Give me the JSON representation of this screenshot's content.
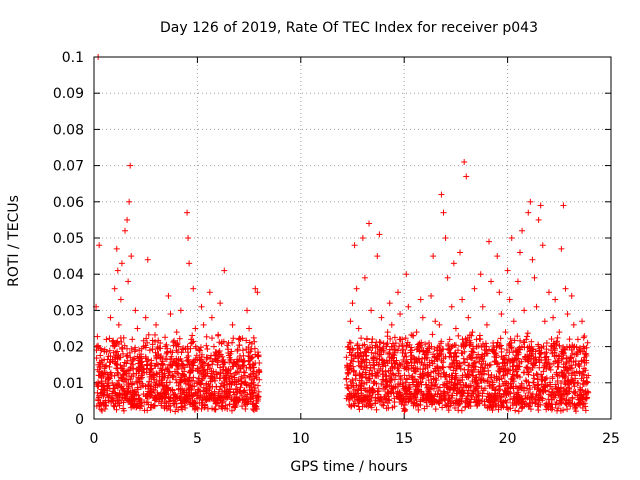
{
  "chart_data": {
    "type": "scatter",
    "title": "Day 126 of 2019, Rate Of TEC Index for receiver p043",
    "xlabel": "GPS time / hours",
    "ylabel": "ROTI / TECUs",
    "xlim": [
      0,
      25
    ],
    "ylim": [
      0,
      0.1
    ],
    "xticks": [
      0,
      5,
      10,
      15,
      20,
      25
    ],
    "xtick_labels": [
      "0",
      "5",
      "10",
      "15",
      "20",
      "25"
    ],
    "yticks": [
      0,
      0.01,
      0.02,
      0.03,
      0.04,
      0.05,
      0.06,
      0.07,
      0.08,
      0.09,
      0.1
    ],
    "ytick_labels": [
      "0",
      "0.01",
      "0.02",
      "0.03",
      "0.04",
      "0.05",
      "0.06",
      "0.07",
      "0.08",
      "0.09",
      "0.1"
    ],
    "grid": true,
    "marker": "+",
    "color": "#ff0000",
    "series": [
      {
        "name": "ROTI",
        "x": [
          0.1,
          0.2,
          0.25,
          0.3,
          0.35,
          0.4,
          0.5,
          0.6,
          0.7,
          0.8,
          0.9,
          1.0,
          1.1,
          1.15,
          1.2,
          1.3,
          1.35,
          1.4,
          1.5,
          1.6,
          1.65,
          1.7,
          1.75,
          1.8,
          1.85,
          1.9,
          2.0,
          2.1,
          2.2,
          2.3,
          2.4,
          2.5,
          2.6,
          2.7,
          2.8,
          2.9,
          3.0,
          3.1,
          3.2,
          3.3,
          3.4,
          3.5,
          3.6,
          3.7,
          3.8,
          3.9,
          4.0,
          4.1,
          4.2,
          4.3,
          4.4,
          4.5,
          4.55,
          4.6,
          4.7,
          4.8,
          4.9,
          5.0,
          5.1,
          5.2,
          5.3,
          5.4,
          5.5,
          5.6,
          5.7,
          5.8,
          5.9,
          6.0,
          6.1,
          6.2,
          6.3,
          6.4,
          6.5,
          6.6,
          6.7,
          6.8,
          6.9,
          7.0,
          7.1,
          7.2,
          7.3,
          7.4,
          7.5,
          7.6,
          7.7,
          7.8,
          7.9,
          8.0,
          12.2,
          12.3,
          12.4,
          12.5,
          12.6,
          12.7,
          12.8,
          12.9,
          13.0,
          13.1,
          13.2,
          13.3,
          13.4,
          13.5,
          13.6,
          13.7,
          13.8,
          13.9,
          14.0,
          14.1,
          14.2,
          14.3,
          14.4,
          14.5,
          14.6,
          14.7,
          14.8,
          14.9,
          15.0,
          15.1,
          15.2,
          15.3,
          15.4,
          15.5,
          15.6,
          15.7,
          15.8,
          15.9,
          16.0,
          16.1,
          16.2,
          16.3,
          16.4,
          16.5,
          16.6,
          16.7,
          16.8,
          16.9,
          17.0,
          17.1,
          17.2,
          17.3,
          17.4,
          17.5,
          17.6,
          17.7,
          17.8,
          17.9,
          18.0,
          18.1,
          18.2,
          18.3,
          18.4,
          18.5,
          18.6,
          18.7,
          18.8,
          18.9,
          19.0,
          19.1,
          19.2,
          19.3,
          19.4,
          19.5,
          19.6,
          19.7,
          19.8,
          19.9,
          20.0,
          20.1,
          20.2,
          20.3,
          20.4,
          20.5,
          20.6,
          20.7,
          20.8,
          20.9,
          21.0,
          21.1,
          21.2,
          21.3,
          21.4,
          21.5,
          21.6,
          21.7,
          21.8,
          21.9,
          22.0,
          22.1,
          22.2,
          22.3,
          22.4,
          22.5,
          22.6,
          22.7,
          22.8,
          22.9,
          23.0,
          23.1,
          23.2,
          23.3,
          23.4,
          23.5,
          23.6,
          23.7,
          23.8,
          23.9
        ],
        "y": [
          0.031,
          0.1,
          0.048,
          0.012,
          0.019,
          0.009,
          0.014,
          0.022,
          0.011,
          0.028,
          0.016,
          0.036,
          0.047,
          0.041,
          0.026,
          0.033,
          0.043,
          0.018,
          0.052,
          0.055,
          0.038,
          0.06,
          0.07,
          0.045,
          0.022,
          0.014,
          0.03,
          0.025,
          0.017,
          0.012,
          0.02,
          0.028,
          0.044,
          0.019,
          0.013,
          0.01,
          0.026,
          0.015,
          0.021,
          0.011,
          0.009,
          0.018,
          0.034,
          0.029,
          0.012,
          0.016,
          0.024,
          0.02,
          0.03,
          0.015,
          0.011,
          0.057,
          0.05,
          0.043,
          0.022,
          0.036,
          0.025,
          0.014,
          0.019,
          0.031,
          0.026,
          0.012,
          0.017,
          0.035,
          0.028,
          0.02,
          0.013,
          0.023,
          0.032,
          0.016,
          0.041,
          0.012,
          0.021,
          0.018,
          0.026,
          0.011,
          0.015,
          0.022,
          0.014,
          0.019,
          0.012,
          0.03,
          0.025,
          0.017,
          0.01,
          0.036,
          0.035,
          0.013,
          0.011,
          0.02,
          0.027,
          0.032,
          0.048,
          0.036,
          0.025,
          0.018,
          0.05,
          0.039,
          0.022,
          0.054,
          0.03,
          0.015,
          0.012,
          0.045,
          0.051,
          0.028,
          0.019,
          0.013,
          0.024,
          0.032,
          0.026,
          0.017,
          0.012,
          0.035,
          0.029,
          0.022,
          0.014,
          0.04,
          0.031,
          0.019,
          0.011,
          0.016,
          0.024,
          0.02,
          0.033,
          0.028,
          0.015,
          0.012,
          0.021,
          0.034,
          0.045,
          0.027,
          0.018,
          0.026,
          0.062,
          0.057,
          0.05,
          0.039,
          0.022,
          0.031,
          0.043,
          0.025,
          0.019,
          0.046,
          0.033,
          0.071,
          0.067,
          0.028,
          0.017,
          0.024,
          0.036,
          0.022,
          0.013,
          0.04,
          0.031,
          0.018,
          0.026,
          0.049,
          0.038,
          0.021,
          0.016,
          0.045,
          0.035,
          0.029,
          0.012,
          0.024,
          0.041,
          0.033,
          0.05,
          0.027,
          0.019,
          0.038,
          0.046,
          0.052,
          0.03,
          0.022,
          0.057,
          0.06,
          0.044,
          0.039,
          0.031,
          0.055,
          0.059,
          0.048,
          0.027,
          0.021,
          0.035,
          0.019,
          0.028,
          0.033,
          0.016,
          0.024,
          0.047,
          0.059,
          0.036,
          0.029,
          0.02,
          0.034,
          0.026,
          0.016,
          0.022,
          0.019,
          0.027,
          0.014,
          0.018,
          0.012
        ]
      }
    ],
    "dense_band": {
      "segments": [
        [
          0.1,
          8.0
        ],
        [
          12.2,
          23.9
        ]
      ],
      "y_range": [
        0.002,
        0.02
      ],
      "note": "dense cloud of points between about 0.003 and 0.02 throughout both observation periods"
    }
  }
}
